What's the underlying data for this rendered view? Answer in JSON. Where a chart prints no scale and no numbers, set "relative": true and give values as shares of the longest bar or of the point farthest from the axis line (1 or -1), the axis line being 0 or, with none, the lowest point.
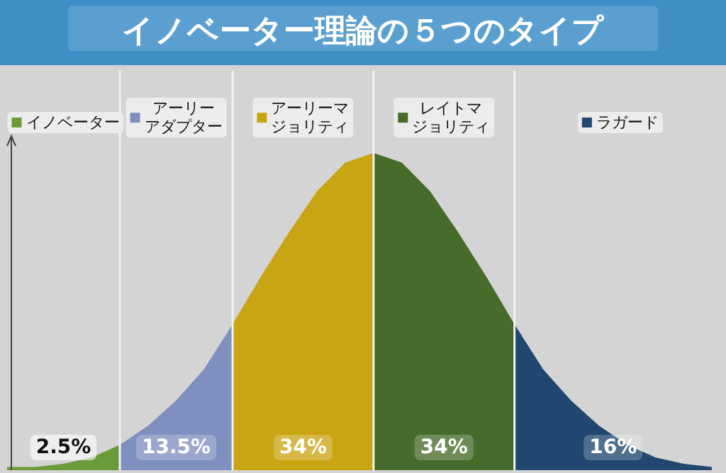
{
  "chart_data": {
    "type": "area",
    "title": "イノベーター理論の５つのタイプ",
    "relative": true,
    "legend": "top",
    "grid": "x",
    "annotations": [
      "2.5%",
      "13.5%",
      "34%",
      "34%",
      "16%"
    ],
    "categories": [
      null,
      null,
      null,
      null,
      null,
      null,
      null,
      null,
      null,
      null,
      null,
      null,
      null,
      null,
      null,
      null,
      null,
      null,
      null,
      null,
      null,
      null,
      null,
      null,
      null,
      null
    ],
    "series": [
      {
        "name": "イノベーター",
        "color": "#6a9a3a",
        "values": [
          0.01,
          0.01,
          0.02,
          0.04,
          0.08,
          null,
          null,
          null,
          null,
          null,
          null,
          null,
          null,
          null,
          null,
          null,
          null,
          null,
          null,
          null,
          null,
          null,
          null,
          null,
          null,
          null
        ]
      },
      {
        "name": "アーリーアダプター",
        "color": "#7f8fbf",
        "values": [
          null,
          null,
          null,
          null,
          0.08,
          0.14,
          0.22,
          0.32,
          0.46,
          null,
          null,
          null,
          null,
          null,
          null,
          null,
          null,
          null,
          null,
          null,
          null,
          null,
          null,
          null,
          null,
          null
        ]
      },
      {
        "name": "アーリーマジョリティ",
        "color": "#c9a514",
        "values": [
          null,
          null,
          null,
          null,
          null,
          null,
          null,
          null,
          0.46,
          0.61,
          0.75,
          0.88,
          0.97,
          1,
          null,
          null,
          null,
          null,
          null,
          null,
          null,
          null,
          null,
          null,
          null,
          null
        ]
      },
      {
        "name": "レイトマジョリティ",
        "color": "#466b2a",
        "values": [
          null,
          null,
          null,
          null,
          null,
          null,
          null,
          null,
          null,
          null,
          null,
          null,
          null,
          1,
          0.97,
          0.88,
          0.75,
          0.61,
          0.46,
          null,
          null,
          null,
          null,
          null,
          null,
          null
        ]
      },
      {
        "name": "ラガード",
        "color": "#1f4770",
        "values": [
          null,
          null,
          null,
          null,
          null,
          null,
          null,
          null,
          null,
          null,
          null,
          null,
          null,
          null,
          null,
          null,
          null,
          null,
          0.46,
          0.32,
          0.22,
          0.14,
          0.08,
          0.04,
          0.02,
          0.01
        ]
      }
    ]
  }
}
